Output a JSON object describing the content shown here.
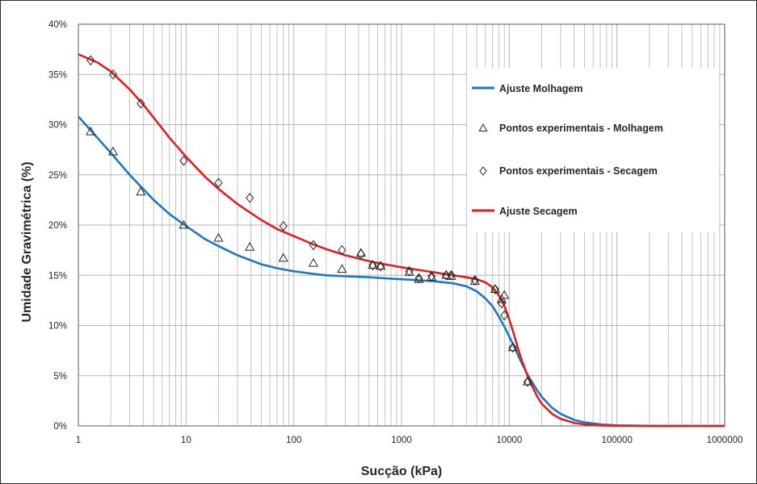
{
  "chart_data": {
    "type": "scatter",
    "xscale": "log",
    "xlim": [
      1,
      1000000
    ],
    "ylim": [
      0,
      40
    ],
    "x_ticks": [
      1,
      10,
      100,
      1000,
      10000,
      100000,
      1000000
    ],
    "x_tick_labels": [
      "1",
      "10",
      "100",
      "1000",
      "10000",
      "100000",
      "1000000"
    ],
    "y_ticks": [
      0,
      5,
      10,
      15,
      20,
      25,
      30,
      35,
      40
    ],
    "y_tick_labels": [
      "0%",
      "5%",
      "10%",
      "15%",
      "20%",
      "25%",
      "30%",
      "35%",
      "40%"
    ],
    "xlabel": "Sucção (kPa)",
    "ylabel": "Umidade Gravimétrica (%)",
    "grid": "vertical major and minor; horizontal major",
    "legend_placement": "top-right",
    "series": [
      {
        "name": "Ajuste Molhagem",
        "kind": "line",
        "color": "#1f77c0",
        "x": [
          1,
          1.5,
          2,
          3,
          5,
          7,
          10,
          15,
          20,
          30,
          50,
          70,
          100,
          150,
          200,
          300,
          500,
          700,
          1000,
          1500,
          2000,
          3000,
          4000,
          5000,
          6000,
          7000,
          8000,
          9000,
          10000,
          11000,
          12000,
          13000,
          15000,
          18000,
          20000,
          25000,
          30000,
          40000,
          50000,
          70000,
          100000,
          200000,
          1000000
        ],
        "y": [
          30.8,
          28.7,
          27.2,
          25.0,
          22.5,
          21.1,
          19.9,
          18.6,
          17.9,
          17.0,
          16.1,
          15.7,
          15.4,
          15.15,
          15.0,
          14.9,
          14.8,
          14.7,
          14.6,
          14.5,
          14.4,
          14.2,
          13.9,
          13.4,
          12.7,
          11.9,
          10.9,
          9.9,
          8.9,
          8.0,
          7.1,
          6.3,
          5.0,
          3.6,
          2.9,
          1.8,
          1.2,
          0.6,
          0.35,
          0.15,
          0.06,
          0.01,
          0.0
        ]
      },
      {
        "name": "Pontos experimentais - Molhagem",
        "kind": "marker",
        "marker": "triangle",
        "x": [
          1.3,
          2.1,
          3.8,
          9.5,
          20,
          39,
          80,
          152,
          280,
          420,
          540,
          640,
          1180,
          1450,
          1900,
          2600,
          2900,
          4800,
          7400,
          8500,
          9000,
          10800,
          14800
        ],
        "y": [
          29.3,
          27.3,
          23.3,
          20.0,
          18.7,
          17.8,
          16.7,
          16.2,
          15.6,
          17.2,
          16.0,
          15.9,
          15.3,
          14.6,
          14.8,
          15.0,
          14.9,
          14.4,
          13.6,
          12.6,
          13.0,
          7.8,
          4.4
        ]
      },
      {
        "name": "Pontos experimentais - Secagem",
        "kind": "marker",
        "marker": "diamond",
        "x": [
          1.3,
          2.1,
          3.8,
          9.5,
          20,
          39,
          80,
          152,
          280,
          420,
          540,
          640,
          1180,
          1450,
          1900,
          2600,
          2900,
          4800,
          7400,
          8500,
          9000,
          10800,
          14800
        ],
        "y": [
          36.4,
          35.0,
          32.1,
          26.4,
          24.2,
          22.7,
          19.9,
          18.0,
          17.5,
          17.1,
          16.0,
          15.9,
          15.4,
          14.7,
          14.9,
          15.0,
          15.0,
          14.5,
          13.6,
          12.2,
          11.0,
          7.8,
          4.4
        ]
      },
      {
        "name": "Ajuste Secagem",
        "kind": "line",
        "color": "#e02020",
        "x": [
          1,
          1.5,
          2,
          3,
          4,
          5,
          7,
          10,
          15,
          20,
          30,
          50,
          70,
          100,
          150,
          200,
          300,
          500,
          700,
          1000,
          1500,
          2000,
          3000,
          4000,
          5000,
          6000,
          7000,
          8000,
          9000,
          10000,
          11000,
          12000,
          13000,
          15000,
          18000,
          20000,
          25000,
          30000,
          40000,
          50000,
          70000,
          100000,
          200000,
          1000000
        ],
        "y": [
          37.0,
          36.2,
          35.3,
          33.5,
          32.0,
          30.7,
          28.7,
          26.8,
          24.8,
          23.6,
          22.1,
          20.5,
          19.6,
          18.9,
          18.1,
          17.6,
          17.0,
          16.4,
          16.1,
          15.8,
          15.5,
          15.3,
          15.0,
          14.8,
          14.6,
          14.3,
          13.8,
          13.0,
          12.0,
          10.6,
          9.2,
          7.8,
          6.6,
          4.8,
          3.0,
          2.2,
          1.2,
          0.7,
          0.3,
          0.15,
          0.05,
          0.02,
          0.0,
          0.0
        ]
      }
    ]
  },
  "colors": {
    "molhagem": "#1f77c0",
    "secagem": "#e02020",
    "grid": "#b5b5b5",
    "axis": "#595959"
  }
}
